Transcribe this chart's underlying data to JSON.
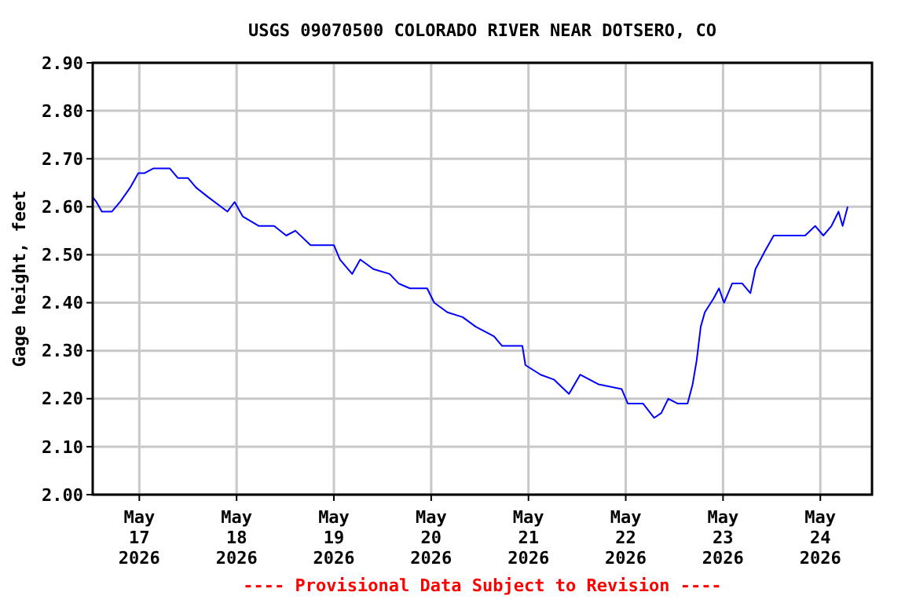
{
  "chart_data": {
    "type": "line",
    "title": "USGS 09070500 COLORADO RIVER NEAR DOTSERO, CO",
    "ylabel": "Gage height, feet",
    "annotations": [
      "---- Provisional Data Subject to Revision ----"
    ],
    "xlim": [
      "2026-05-16T12:30",
      "2026-05-24T12:45"
    ],
    "xticks": [
      {
        "value": "2026-05-17",
        "label": "May 17 2026"
      },
      {
        "value": "2026-05-18",
        "label": "May 18 2026"
      },
      {
        "value": "2026-05-19",
        "label": "May 19 2026"
      },
      {
        "value": "2026-05-20",
        "label": "May 20 2026"
      },
      {
        "value": "2026-05-21",
        "label": "May 21 2026"
      },
      {
        "value": "2026-05-22",
        "label": "May 22 2026"
      },
      {
        "value": "2026-05-23",
        "label": "May 23 2026"
      },
      {
        "value": "2026-05-24",
        "label": "May 24 2026"
      }
    ],
    "ylim": [
      2.0,
      2.9
    ],
    "yticks": [
      {
        "value": 2.0,
        "label": "2.00"
      },
      {
        "value": 2.1,
        "label": "2.10"
      },
      {
        "value": 2.2,
        "label": "2.20"
      },
      {
        "value": 2.3,
        "label": "2.30"
      },
      {
        "value": 2.4,
        "label": "2.40"
      },
      {
        "value": 2.5,
        "label": "2.50"
      },
      {
        "value": 2.6,
        "label": "2.60"
      },
      {
        "value": 2.7,
        "label": "2.70"
      },
      {
        "value": 2.8,
        "label": "2.80"
      },
      {
        "value": 2.9,
        "label": "2.90"
      }
    ],
    "grid": true,
    "x": [
      "2026-05-16T12:30",
      "2026-05-16T13:25",
      "2026-05-16T14:45",
      "2026-05-16T17:15",
      "2026-05-16T19:15",
      "2026-05-16T21:45",
      "2026-05-16T23:45",
      "2026-05-17T01:15",
      "2026-05-17T03:30",
      "2026-05-17T07:30",
      "2026-05-17T09:30",
      "2026-05-17T12:00",
      "2026-05-17T14:00",
      "2026-05-17T17:00",
      "2026-05-17T21:45",
      "2026-05-17T23:30",
      "2026-05-18T01:30",
      "2026-05-18T05:30",
      "2026-05-18T09:15",
      "2026-05-18T12:15",
      "2026-05-18T14:30",
      "2026-05-18T18:15",
      "2026-05-19T00:00",
      "2026-05-19T01:30",
      "2026-05-19T04:30",
      "2026-05-19T06:30",
      "2026-05-19T09:45",
      "2026-05-19T13:45",
      "2026-05-19T16:00",
      "2026-05-19T18:45",
      "2026-05-19T23:00",
      "2026-05-20T00:45",
      "2026-05-20T04:00",
      "2026-05-20T07:45",
      "2026-05-20T11:00",
      "2026-05-20T15:30",
      "2026-05-20T17:30",
      "2026-05-20T22:30",
      "2026-05-20T23:15",
      "2026-05-21T03:00",
      "2026-05-21T06:15",
      "2026-05-21T10:00",
      "2026-05-21T12:45",
      "2026-05-21T17:15",
      "2026-05-21T23:00",
      "2026-05-22T00:30",
      "2026-05-22T04:15",
      "2026-05-22T07:00",
      "2026-05-22T08:45",
      "2026-05-22T10:30",
      "2026-05-22T12:45",
      "2026-05-22T15:15",
      "2026-05-22T16:30",
      "2026-05-22T17:30",
      "2026-05-22T18:30",
      "2026-05-22T19:30",
      "2026-05-22T21:45",
      "2026-05-22T23:00",
      "2026-05-23T00:15",
      "2026-05-23T02:15",
      "2026-05-23T04:45",
      "2026-05-23T06:45",
      "2026-05-23T08:00",
      "2026-05-23T10:30",
      "2026-05-23T12:30",
      "2026-05-23T14:30",
      "2026-05-23T20:15",
      "2026-05-23T22:45",
      "2026-05-24T00:45",
      "2026-05-24T02:45",
      "2026-05-24T04:30",
      "2026-05-24T05:30",
      "2026-05-24T06:45"
    ],
    "series": [
      {
        "color": "#0000ff",
        "values": [
          2.62,
          2.61,
          2.59,
          2.59,
          2.61,
          2.64,
          2.67,
          2.67,
          2.68,
          2.68,
          2.66,
          2.66,
          2.64,
          2.62,
          2.59,
          2.61,
          2.58,
          2.56,
          2.56,
          2.54,
          2.55,
          2.52,
          2.52,
          2.49,
          2.46,
          2.49,
          2.47,
          2.46,
          2.44,
          2.43,
          2.43,
          2.4,
          2.38,
          2.37,
          2.35,
          2.33,
          2.31,
          2.31,
          2.27,
          2.25,
          2.24,
          2.21,
          2.25,
          2.23,
          2.22,
          2.19,
          2.19,
          2.16,
          2.17,
          2.2,
          2.19,
          2.19,
          2.23,
          2.28,
          2.35,
          2.38,
          2.41,
          2.43,
          2.4,
          2.44,
          2.44,
          2.42,
          2.47,
          2.51,
          2.54,
          2.54,
          2.54,
          2.56,
          2.54,
          2.56,
          2.59,
          2.56,
          2.6
        ]
      }
    ]
  }
}
